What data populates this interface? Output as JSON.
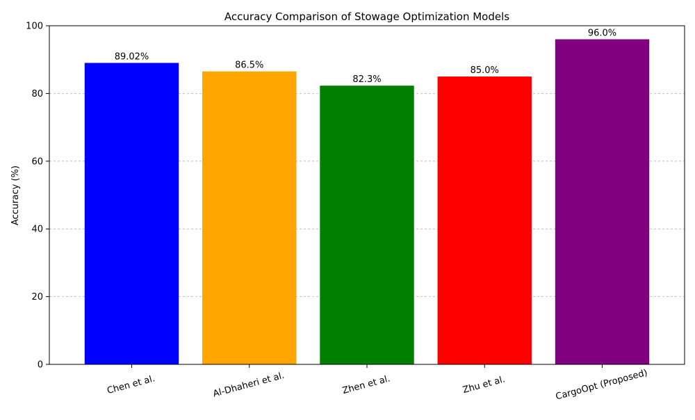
{
  "chart_data": {
    "type": "bar",
    "title": "Accuracy Comparison of Stowage Optimization Models",
    "xlabel": "",
    "ylabel": "Accuracy (%)",
    "categories": [
      "Chen et al.",
      "Al-Dhaheri et al.",
      "Zhen et al.",
      "Zhu et al.",
      "CargoOpt (Proposed)"
    ],
    "values": [
      89.02,
      86.5,
      82.3,
      85.0,
      96.0
    ],
    "data_labels": [
      "89.02%",
      "86.5%",
      "82.3%",
      "85.0%",
      "96.0%"
    ],
    "colors": [
      "#0000ff",
      "#ffa500",
      "#008000",
      "#ff0000",
      "#800080"
    ],
    "ylim": [
      0,
      100
    ],
    "yticks": [
      0,
      20,
      40,
      60,
      80,
      100
    ],
    "grid": "y-dashed",
    "legend": "none"
  }
}
